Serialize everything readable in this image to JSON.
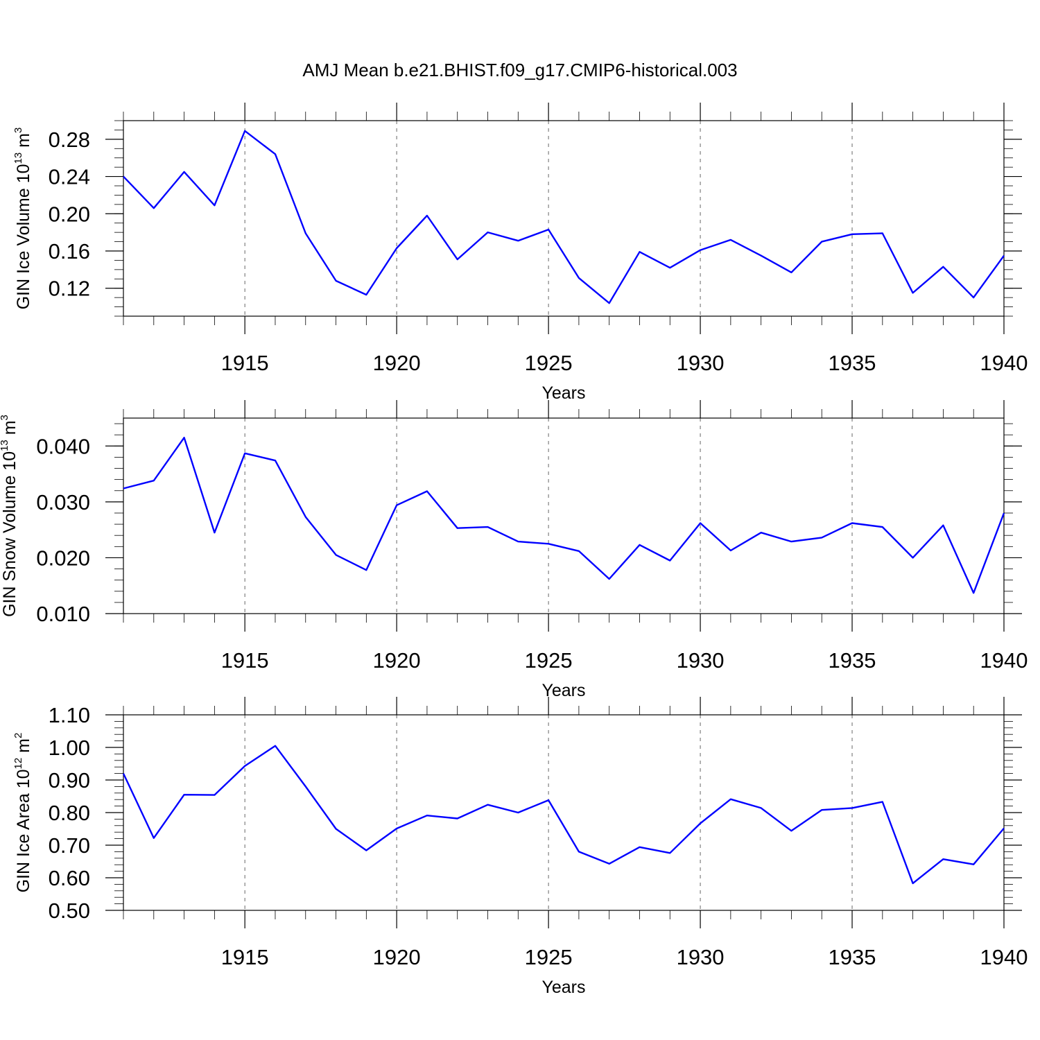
{
  "title": "AMJ Mean b.e21.BHIST.f09_g17.CMIP6-historical.003",
  "colors": {
    "series": "#0000ff"
  },
  "chart_data": [
    {
      "type": "line",
      "ylabel": {
        "text": "GIN Ice Volume 10",
        "sup": "13",
        "unit": " m",
        "unit_sup": "3"
      },
      "xlabel": "Years",
      "xlim": [
        1911,
        1940
      ],
      "ylim": [
        0.09,
        0.3
      ],
      "x_ticks": [
        1915,
        1920,
        1925,
        1930,
        1935,
        1940
      ],
      "y_ticks": [
        0.12,
        0.16,
        0.2,
        0.24,
        0.28
      ],
      "y_tick_labels": [
        "0.12",
        "0.16",
        "0.20",
        "0.24",
        "0.28"
      ],
      "y_minor_step": 0.01,
      "x": [
        1911,
        1912,
        1913,
        1914,
        1915,
        1916,
        1917,
        1918,
        1919,
        1920,
        1921,
        1922,
        1923,
        1924,
        1925,
        1926,
        1927,
        1928,
        1929,
        1930,
        1931,
        1932,
        1933,
        1934,
        1935,
        1936,
        1937,
        1938,
        1939,
        1940
      ],
      "series": [
        {
          "values": [
            0.24,
            0.206,
            0.245,
            0.209,
            0.289,
            0.264,
            0.179,
            0.128,
            0.113,
            0.163,
            0.198,
            0.151,
            0.18,
            0.171,
            0.183,
            0.131,
            0.104,
            0.159,
            0.142,
            0.161,
            0.172,
            0.155,
            0.137,
            0.17,
            0.178,
            0.179,
            0.115,
            0.143,
            0.11,
            0.155
          ]
        }
      ]
    },
    {
      "type": "line",
      "ylabel": {
        "text": "GIN Snow Volume 10",
        "sup": "13",
        "unit": " m",
        "unit_sup": "3"
      },
      "xlabel": "Years",
      "xlim": [
        1911,
        1940
      ],
      "ylim": [
        0.01,
        0.045
      ],
      "x_ticks": [
        1915,
        1920,
        1925,
        1930,
        1935,
        1940
      ],
      "y_ticks": [
        0.01,
        0.02,
        0.03,
        0.04
      ],
      "y_tick_labels": [
        "0.010",
        "0.020",
        "0.030",
        "0.040"
      ],
      "y_minor_step": 0.002,
      "x": [
        1911,
        1912,
        1913,
        1914,
        1915,
        1916,
        1917,
        1918,
        1919,
        1920,
        1921,
        1922,
        1923,
        1924,
        1925,
        1926,
        1927,
        1928,
        1929,
        1930,
        1931,
        1932,
        1933,
        1934,
        1935,
        1936,
        1937,
        1938,
        1939,
        1940
      ],
      "series": [
        {
          "values": [
            0.0324,
            0.0338,
            0.0415,
            0.0245,
            0.0387,
            0.0374,
            0.0273,
            0.0205,
            0.0178,
            0.0294,
            0.0319,
            0.0253,
            0.0255,
            0.0229,
            0.0225,
            0.0212,
            0.0162,
            0.0223,
            0.0195,
            0.0262,
            0.0213,
            0.0245,
            0.0229,
            0.0236,
            0.0262,
            0.0255,
            0.02,
            0.0258,
            0.0137,
            0.028
          ]
        }
      ]
    },
    {
      "type": "line",
      "ylabel": {
        "text": "GIN Ice Area 10",
        "sup": "12",
        "unit": " m",
        "unit_sup": "2"
      },
      "xlabel": "Years",
      "xlim": [
        1911,
        1940
      ],
      "ylim": [
        0.5,
        1.1
      ],
      "x_ticks": [
        1915,
        1920,
        1925,
        1930,
        1935,
        1940
      ],
      "y_ticks": [
        0.5,
        0.6,
        0.7,
        0.8,
        0.9,
        1.0,
        1.1
      ],
      "y_tick_labels": [
        "0.50",
        "0.60",
        "0.70",
        "0.80",
        "0.90",
        "1.00",
        "1.10"
      ],
      "y_minor_step": 0.02,
      "x": [
        1911,
        1912,
        1913,
        1914,
        1915,
        1916,
        1917,
        1918,
        1919,
        1920,
        1921,
        1922,
        1923,
        1924,
        1925,
        1926,
        1927,
        1928,
        1929,
        1930,
        1931,
        1932,
        1933,
        1934,
        1935,
        1936,
        1937,
        1938,
        1939,
        1940
      ],
      "series": [
        {
          "values": [
            0.92,
            0.722,
            0.855,
            0.854,
            0.943,
            1.005,
            0.88,
            0.75,
            0.684,
            0.751,
            0.791,
            0.782,
            0.824,
            0.8,
            0.838,
            0.68,
            0.643,
            0.694,
            0.676,
            0.767,
            0.841,
            0.814,
            0.744,
            0.808,
            0.814,
            0.833,
            0.583,
            0.657,
            0.641,
            0.752
          ]
        }
      ]
    }
  ]
}
